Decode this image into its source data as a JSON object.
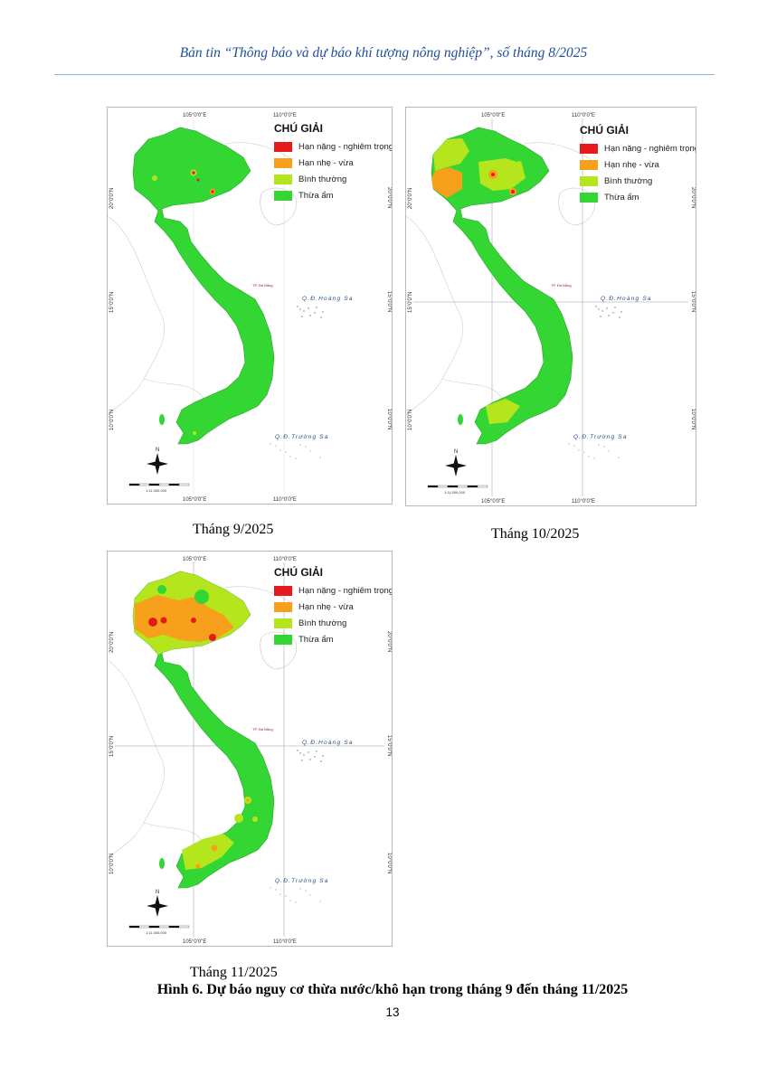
{
  "header": {
    "title": "Bản tin “Thông báo và dự báo khí tượng nông nghiệp”, số tháng 8/2025"
  },
  "legend": {
    "title": "CHÚ GIẢI",
    "items": [
      {
        "label": "Hạn nặng - nghiêm trọng",
        "color": "#e41a1c"
      },
      {
        "label": "Hạn nhẹ - vừa",
        "color": "#f7a01b"
      },
      {
        "label": "Bình thường",
        "color": "#b5e61d"
      },
      {
        "label": "Thừa ẩm",
        "color": "#33d633"
      }
    ]
  },
  "map_labels": {
    "lon_105": "105°0'0\"E",
    "lon_110": "110°0'0\"E",
    "lat_20": "20°0'0\"N",
    "lat_15": "15°0'0\"N",
    "lat_10": "10°0'0\"N",
    "hoang_sa": "Q.Đ.Hoàng Sa",
    "truong_sa": "Q.Đ.Trường Sa",
    "da_nang": "TP. Đà Nẵng",
    "north_arrow": "N"
  },
  "maps": [
    {
      "id": "sep",
      "caption": "Tháng 9/2025",
      "scale_text": "1:11,000,000"
    },
    {
      "id": "oct",
      "caption": "Tháng 10/2025",
      "scale_text": "1:11,000,000"
    },
    {
      "id": "nov",
      "caption": "Tháng 11/2025",
      "scale_text": "1:11,000,000"
    }
  ],
  "figure": {
    "title": "Hình 6. Dự báo nguy cơ thừa nước/khô hạn trong tháng 9 đến tháng 11/2025"
  },
  "page": {
    "number": "13"
  }
}
